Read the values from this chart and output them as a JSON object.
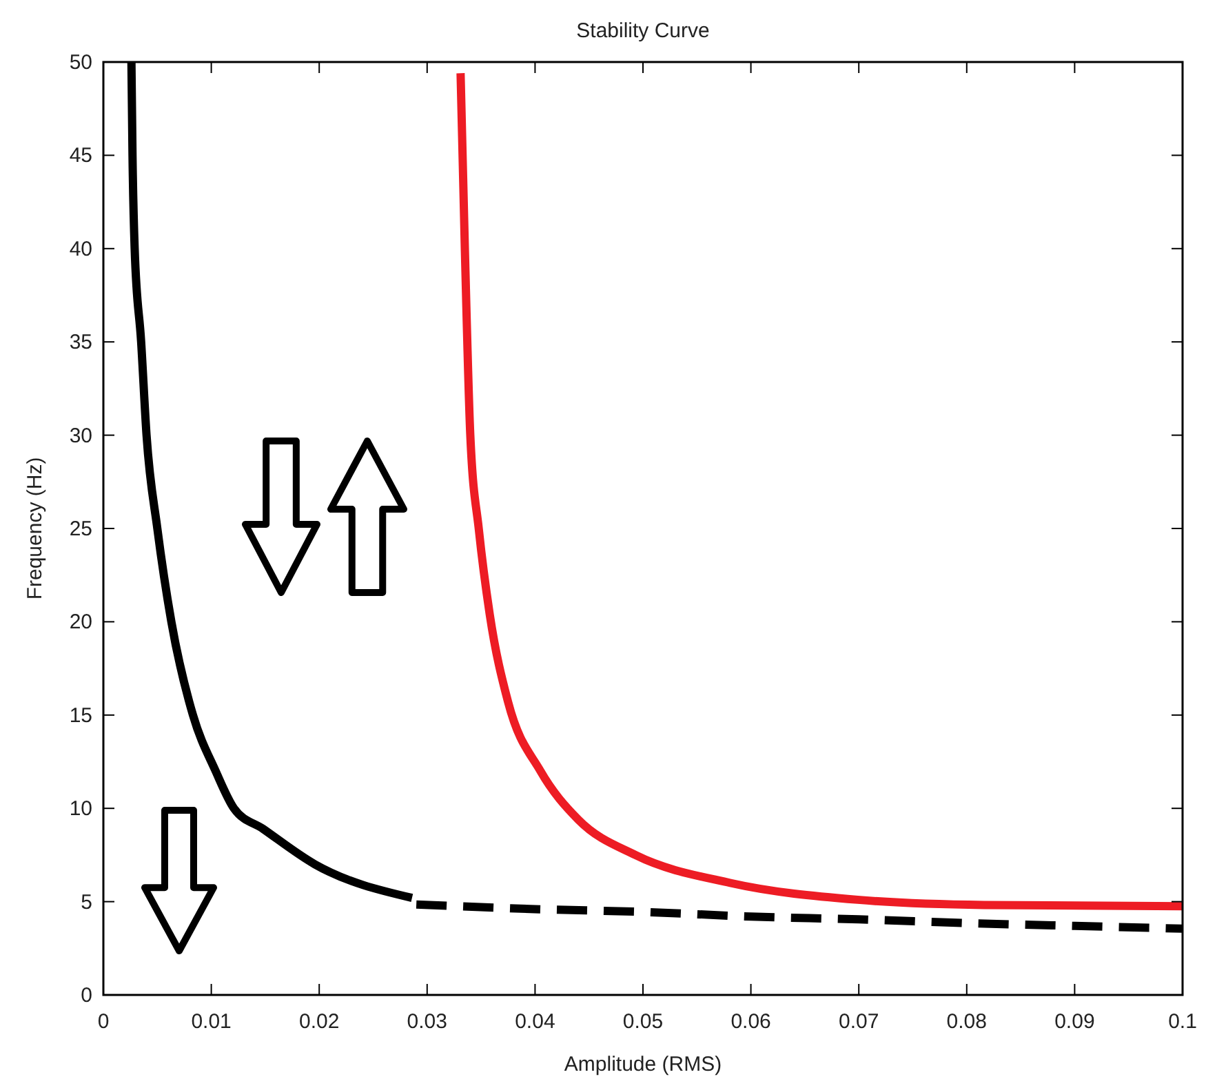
{
  "chart_data": {
    "type": "line",
    "title": "Stability Curve",
    "xlabel": "Amplitude (RMS)",
    "ylabel": "Frequency (Hz)",
    "xlim": [
      0,
      0.1
    ],
    "ylim": [
      0,
      50
    ],
    "xticks": [
      0,
      0.01,
      0.02,
      0.03,
      0.04,
      0.05,
      0.06,
      0.07,
      0.08,
      0.09,
      0.1
    ],
    "yticks": [
      0,
      5,
      10,
      15,
      20,
      25,
      30,
      35,
      40,
      45,
      50
    ],
    "grid": false,
    "marker": "none",
    "series": [
      {
        "color": "#000000",
        "line_style": "solid",
        "x": [
          0.0026,
          0.0027,
          0.0029,
          0.0035,
          0.004,
          0.005,
          0.0063,
          0.0083,
          0.0104,
          0.0121,
          0.0148,
          0.0196,
          0.0286
        ],
        "values": [
          50,
          45,
          40,
          35,
          30,
          25,
          20,
          15,
          12,
          10,
          8.9,
          7,
          5.2
        ]
      },
      {
        "color": "#000000",
        "line_style": "dashed",
        "x": [
          0.029,
          0.04,
          0.05,
          0.06,
          0.07,
          0.08,
          0.09,
          0.1
        ],
        "values": [
          4.85,
          4.6,
          4.45,
          4.2,
          4.05,
          3.85,
          3.7,
          3.55
        ]
      },
      {
        "color": "#ed1c24",
        "line_style": "solid",
        "x": [
          0.0331,
          0.0335,
          0.034,
          0.0348,
          0.0358,
          0.0375,
          0.0405,
          0.044,
          0.0493,
          0.0581,
          0.0699,
          0.0816,
          0.1
        ],
        "values": [
          49.4,
          39.9,
          30,
          24.9,
          20.4,
          15.7,
          12,
          9.4,
          7.5,
          6,
          5.1,
          4.82,
          4.75
        ]
      }
    ]
  }
}
